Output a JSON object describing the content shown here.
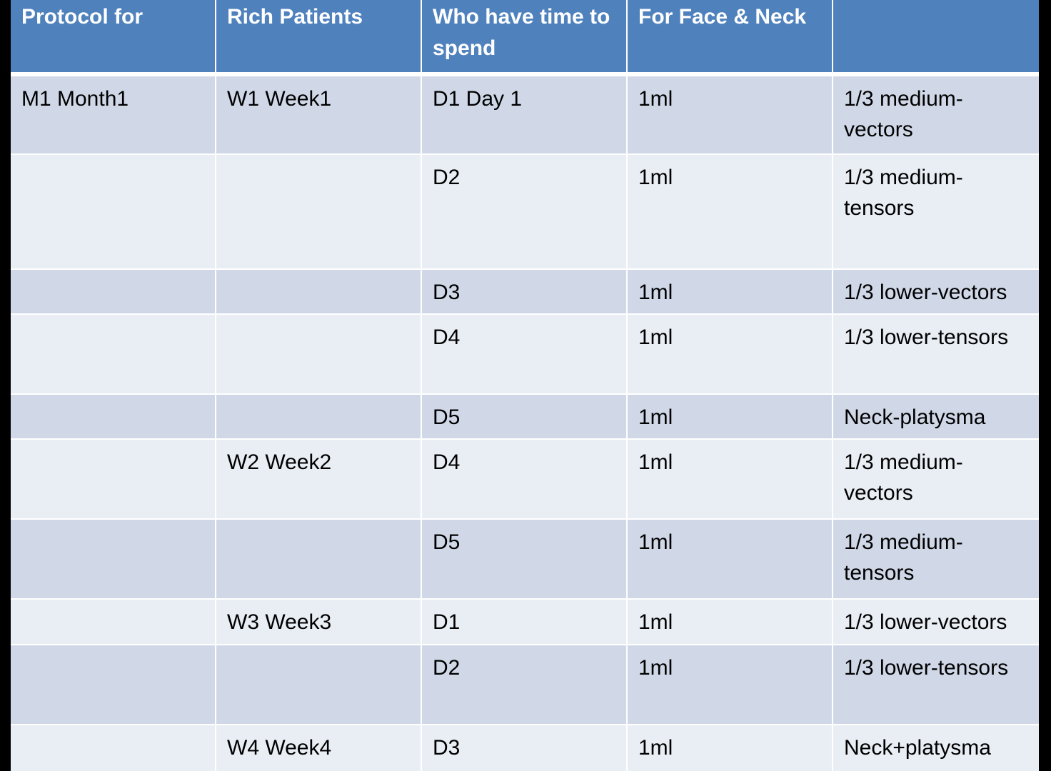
{
  "table": {
    "headers": [
      "Protocol for",
      "Rich Patients",
      "Who have time to spend",
      "For Face & Neck",
      ""
    ],
    "rows": [
      [
        "M1  Month1",
        "W1 Week1",
        "D1 Day 1",
        "1ml",
        "1/3 medium-vectors"
      ],
      [
        "",
        "",
        "D2",
        "1ml",
        "1/3 medium-tensors"
      ],
      [
        "",
        "",
        "D3",
        "1ml",
        "1/3 lower-vectors"
      ],
      [
        "",
        "",
        "D4",
        "1ml",
        "1/3 lower-tensors"
      ],
      [
        "",
        "",
        "D5",
        "1ml",
        "Neck-platysma"
      ],
      [
        "",
        "W2 Week2",
        "D4",
        "1ml",
        "1/3 medium-vectors"
      ],
      [
        "",
        "",
        "D5",
        "1ml",
        "1/3 medium-tensors"
      ],
      [
        "",
        "W3 Week3",
        "D1",
        "1ml",
        "1/3 lower-vectors"
      ],
      [
        "",
        "",
        "D2",
        "1ml",
        "1/3 lower-tensors"
      ],
      [
        "",
        "W4 Week4",
        "D3",
        "1ml",
        "Neck+platysma"
      ]
    ]
  },
  "colors": {
    "header": "#4F81BD",
    "row_odd": "#D0D8E8",
    "row_even": "#E9EDF4",
    "background": "#000000"
  }
}
